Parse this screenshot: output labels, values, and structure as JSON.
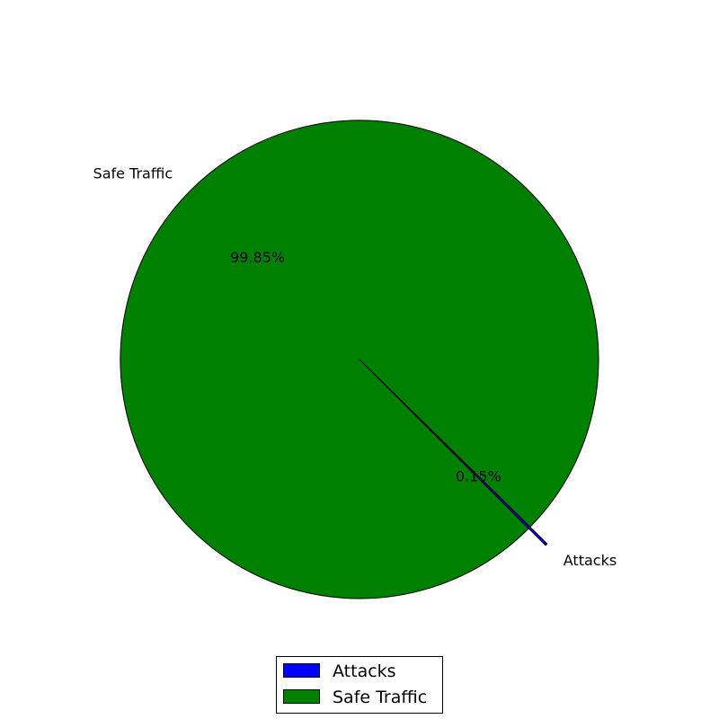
{
  "chart_data": {
    "type": "pie",
    "title": "",
    "slices": [
      {
        "label": "Attacks",
        "value": 0.15,
        "percent_label": "0.15%",
        "color": "#0000ff",
        "exploded": true
      },
      {
        "label": "Safe Traffic",
        "value": 99.85,
        "percent_label": "99.85%",
        "color": "#008000",
        "exploded": false
      }
    ],
    "legend": {
      "placement": "bottom-center",
      "entries": [
        "Attacks",
        "Safe Traffic"
      ]
    }
  }
}
